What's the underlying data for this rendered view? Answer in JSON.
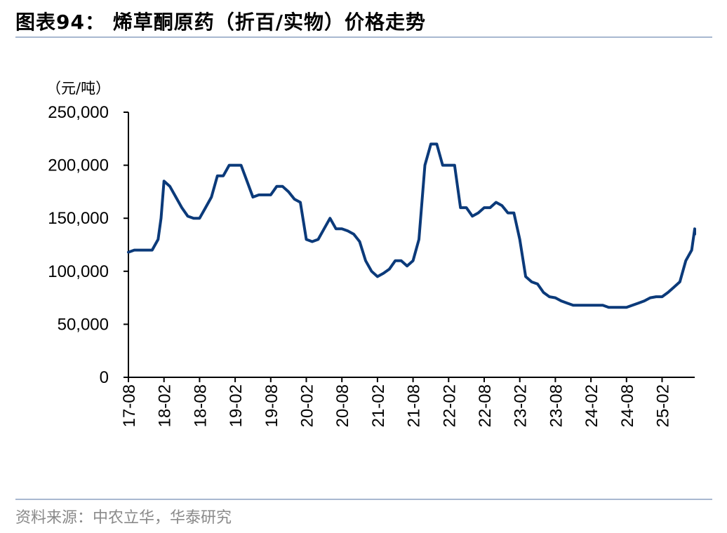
{
  "header": {
    "title": "图表94： 烯草酮原药（折百/实物）价格走势"
  },
  "footer": {
    "source": "资料来源：中农立华，华泰研究"
  },
  "colors": {
    "line": "#0b3a7a",
    "rule": "#a8b8d0",
    "axis": "#000000"
  },
  "chart_data": {
    "type": "line",
    "title": "烯草酮原药（折百/实物）价格走势",
    "ylabel": "（元/吨）",
    "ylim": [
      0,
      250000
    ],
    "yticks": [
      "250,000",
      "200,000",
      "150,000",
      "100,000",
      "50,000",
      "0"
    ],
    "xticks": [
      "17-08",
      "18-02",
      "18-08",
      "19-02",
      "19-08",
      "20-02",
      "20-08",
      "21-02",
      "21-08",
      "22-02",
      "22-08",
      "23-02",
      "23-08",
      "24-02",
      "24-08",
      "25-02"
    ],
    "grid": false,
    "legend": "none",
    "series": [
      {
        "points": [
          [
            "17-08",
            118000
          ],
          [
            "17-09",
            120000
          ],
          [
            "17-12",
            120000
          ],
          [
            "18-01",
            130000
          ],
          [
            "18-01",
            150000
          ],
          [
            "18-02",
            185000
          ],
          [
            "18-03",
            180000
          ],
          [
            "18-04",
            170000
          ],
          [
            "18-05",
            160000
          ],
          [
            "18-06",
            152000
          ],
          [
            "18-07",
            150000
          ],
          [
            "18-08",
            150000
          ],
          [
            "18-09",
            160000
          ],
          [
            "18-10",
            170000
          ],
          [
            "18-11",
            190000
          ],
          [
            "18-12",
            190000
          ],
          [
            "19-01",
            200000
          ],
          [
            "19-02",
            200000
          ],
          [
            "19-03",
            200000
          ],
          [
            "19-04",
            185000
          ],
          [
            "19-05",
            170000
          ],
          [
            "19-06",
            172000
          ],
          [
            "19-07",
            172000
          ],
          [
            "19-08",
            172000
          ],
          [
            "19-09",
            180000
          ],
          [
            "19-10",
            180000
          ],
          [
            "19-11",
            175000
          ],
          [
            "19-12",
            168000
          ],
          [
            "20-01",
            165000
          ],
          [
            "20-02",
            130000
          ],
          [
            "20-03",
            128000
          ],
          [
            "20-04",
            130000
          ],
          [
            "20-05",
            140000
          ],
          [
            "20-06",
            150000
          ],
          [
            "20-07",
            140000
          ],
          [
            "20-08",
            140000
          ],
          [
            "20-09",
            138000
          ],
          [
            "20-10",
            135000
          ],
          [
            "20-11",
            128000
          ],
          [
            "20-12",
            110000
          ],
          [
            "21-01",
            100000
          ],
          [
            "21-02",
            95000
          ],
          [
            "21-03",
            98000
          ],
          [
            "21-04",
            102000
          ],
          [
            "21-05",
            110000
          ],
          [
            "21-06",
            110000
          ],
          [
            "21-07",
            105000
          ],
          [
            "21-08",
            110000
          ],
          [
            "21-09",
            130000
          ],
          [
            "21-10",
            200000
          ],
          [
            "21-11",
            220000
          ],
          [
            "21-12",
            220000
          ],
          [
            "22-01",
            200000
          ],
          [
            "22-02",
            200000
          ],
          [
            "22-03",
            200000
          ],
          [
            "22-04",
            160000
          ],
          [
            "22-05",
            160000
          ],
          [
            "22-06",
            152000
          ],
          [
            "22-07",
            155000
          ],
          [
            "22-08",
            160000
          ],
          [
            "22-09",
            160000
          ],
          [
            "22-10",
            165000
          ],
          [
            "22-11",
            162000
          ],
          [
            "22-12",
            155000
          ],
          [
            "23-01",
            155000
          ],
          [
            "23-02",
            130000
          ],
          [
            "23-03",
            95000
          ],
          [
            "23-04",
            90000
          ],
          [
            "23-05",
            88000
          ],
          [
            "23-06",
            80000
          ],
          [
            "23-07",
            76000
          ],
          [
            "23-08",
            75000
          ],
          [
            "23-09",
            72000
          ],
          [
            "23-10",
            70000
          ],
          [
            "23-11",
            68000
          ],
          [
            "23-12",
            68000
          ],
          [
            "24-01",
            68000
          ],
          [
            "24-02",
            68000
          ],
          [
            "24-03",
            68000
          ],
          [
            "24-04",
            68000
          ],
          [
            "24-05",
            66000
          ],
          [
            "24-06",
            66000
          ],
          [
            "24-07",
            66000
          ],
          [
            "24-08",
            66000
          ],
          [
            "24-09",
            68000
          ],
          [
            "24-10",
            70000
          ],
          [
            "24-11",
            72000
          ],
          [
            "24-12",
            75000
          ],
          [
            "25-01",
            76000
          ],
          [
            "25-02",
            76000
          ],
          [
            "25-03",
            80000
          ],
          [
            "25-04",
            85000
          ],
          [
            "25-05",
            90000
          ],
          [
            "25-06",
            110000
          ],
          [
            "25-07",
            120000
          ],
          [
            "25-08",
            140000
          ],
          [
            "25-08",
            135000
          ]
        ]
      }
    ]
  }
}
